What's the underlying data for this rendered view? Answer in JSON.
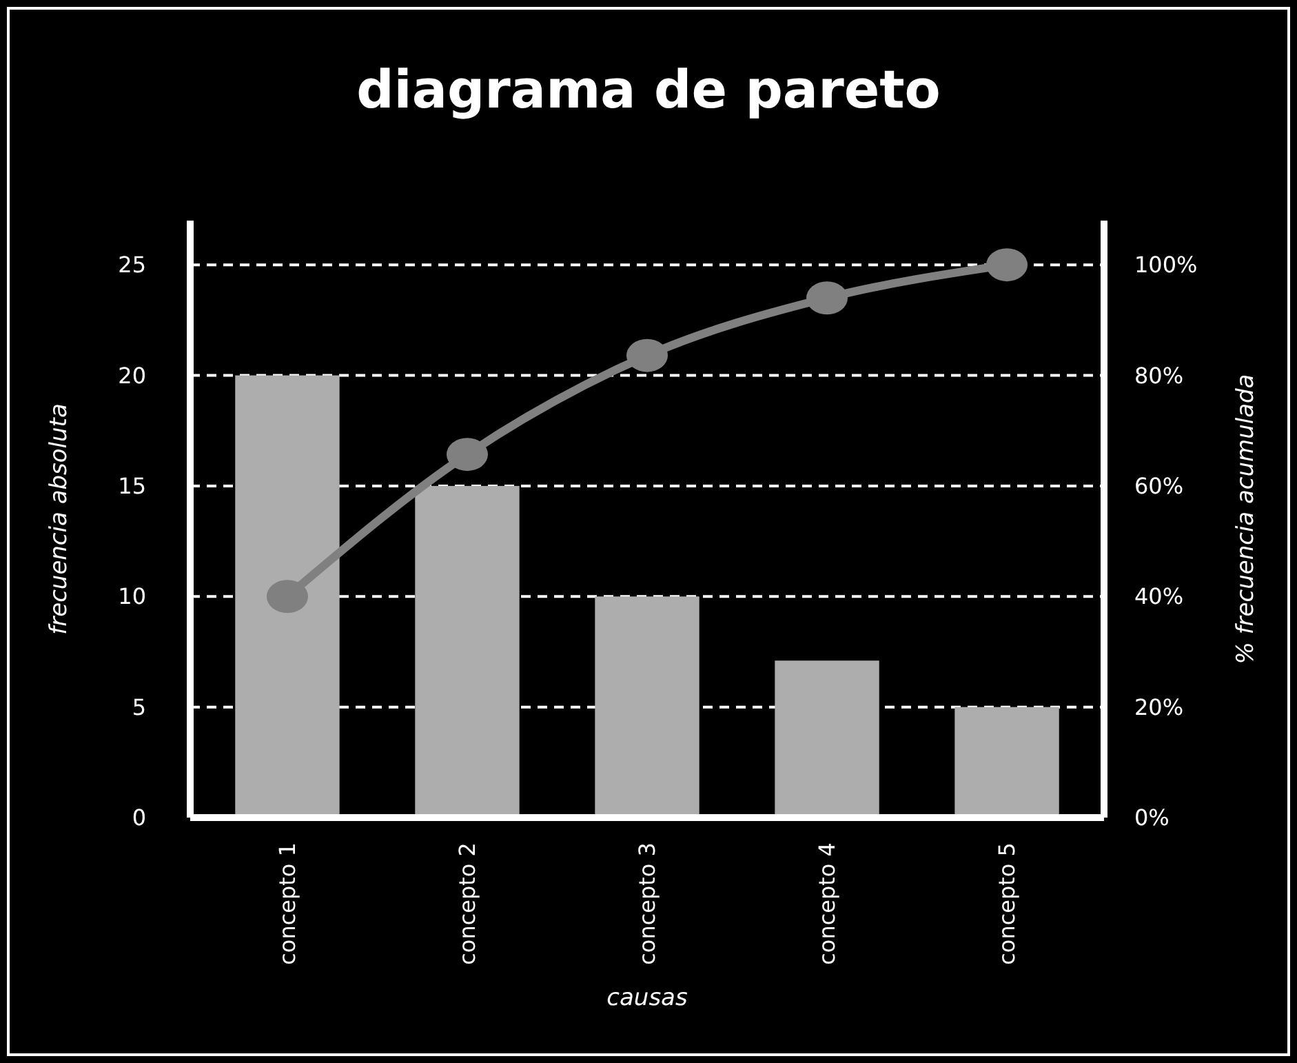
{
  "chart_data": {
    "type": "bar",
    "title": "diagrama de pareto",
    "xlabel": "causas",
    "ylabel": "frecuencia absoluta",
    "y2label": "% frecuencia acumulada",
    "categories": [
      "concepto 1",
      "concepto 2",
      "concepto 3",
      "concepto 4",
      "concepto 5"
    ],
    "series": [
      {
        "color": "#adadad",
        "values": [
          20,
          15,
          10,
          7.1,
          5
        ]
      },
      {
        "type": "line",
        "axis": "y2",
        "color": "#808080",
        "marker": "circle",
        "values": [
          40,
          65.7,
          83.6,
          94,
          100
        ]
      }
    ],
    "ylim": [
      0,
      27
    ],
    "yticks": [
      0,
      5,
      10,
      15,
      20,
      25
    ],
    "y2lim": [
      0,
      108
    ],
    "y2ticks": [
      {
        "value": 0,
        "label": "0%"
      },
      {
        "value": 20,
        "label": "20%"
      },
      {
        "value": 40,
        "label": "40%"
      },
      {
        "value": 60,
        "label": "60%"
      },
      {
        "value": 80,
        "label": "80%"
      },
      {
        "value": 100,
        "label": "100%"
      }
    ],
    "grid": "y"
  }
}
